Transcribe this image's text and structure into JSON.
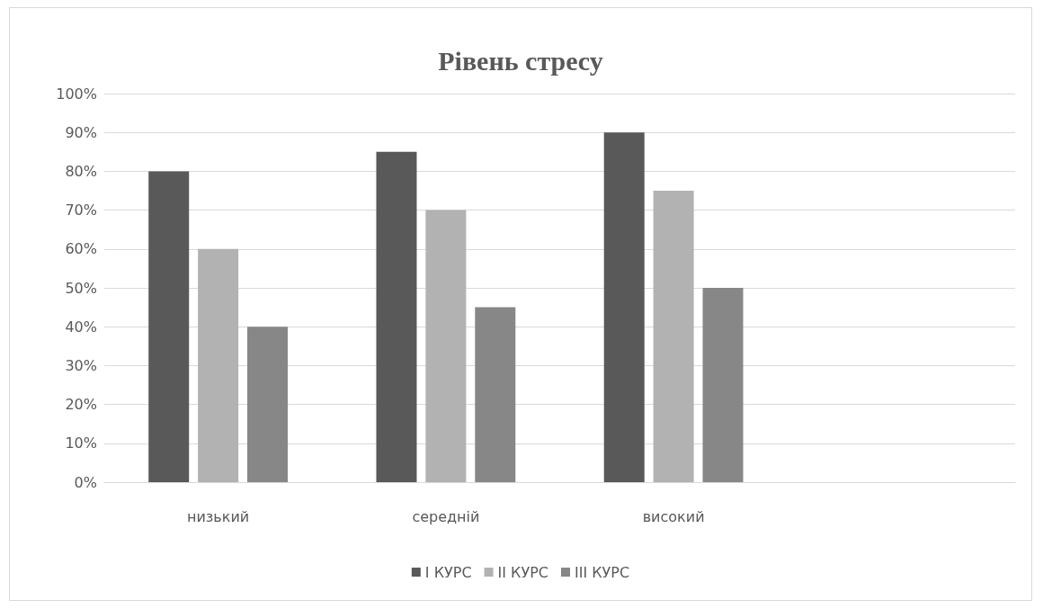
{
  "chart_data": {
    "type": "bar",
    "title": "Рівень стресу",
    "categories": [
      "низький",
      "середній",
      "високий",
      null
    ],
    "series": [
      {
        "name": "I КУРС",
        "color": "#595959",
        "values": [
          80,
          85,
          90,
          null
        ]
      },
      {
        "name": "II КУРС",
        "color": "#b2b2b2",
        "values": [
          60,
          70,
          75,
          null
        ]
      },
      {
        "name": "III КУРС",
        "color": "#878787",
        "values": [
          40,
          45,
          50,
          null
        ]
      }
    ],
    "ylim": [
      0,
      100
    ],
    "yticks": [
      {
        "value": 0,
        "label": "0%"
      },
      {
        "value": 10,
        "label": "10%"
      },
      {
        "value": 20,
        "label": "20%"
      },
      {
        "value": 30,
        "label": "30%"
      },
      {
        "value": 40,
        "label": "40%"
      },
      {
        "value": 50,
        "label": "50%"
      },
      {
        "value": 60,
        "label": "60%"
      },
      {
        "value": 70,
        "label": "70%"
      },
      {
        "value": 80,
        "label": "80%"
      },
      {
        "value": 90,
        "label": "90%"
      },
      {
        "value": 100,
        "label": "100%"
      }
    ],
    "grid": "y",
    "legend": "bottom"
  }
}
